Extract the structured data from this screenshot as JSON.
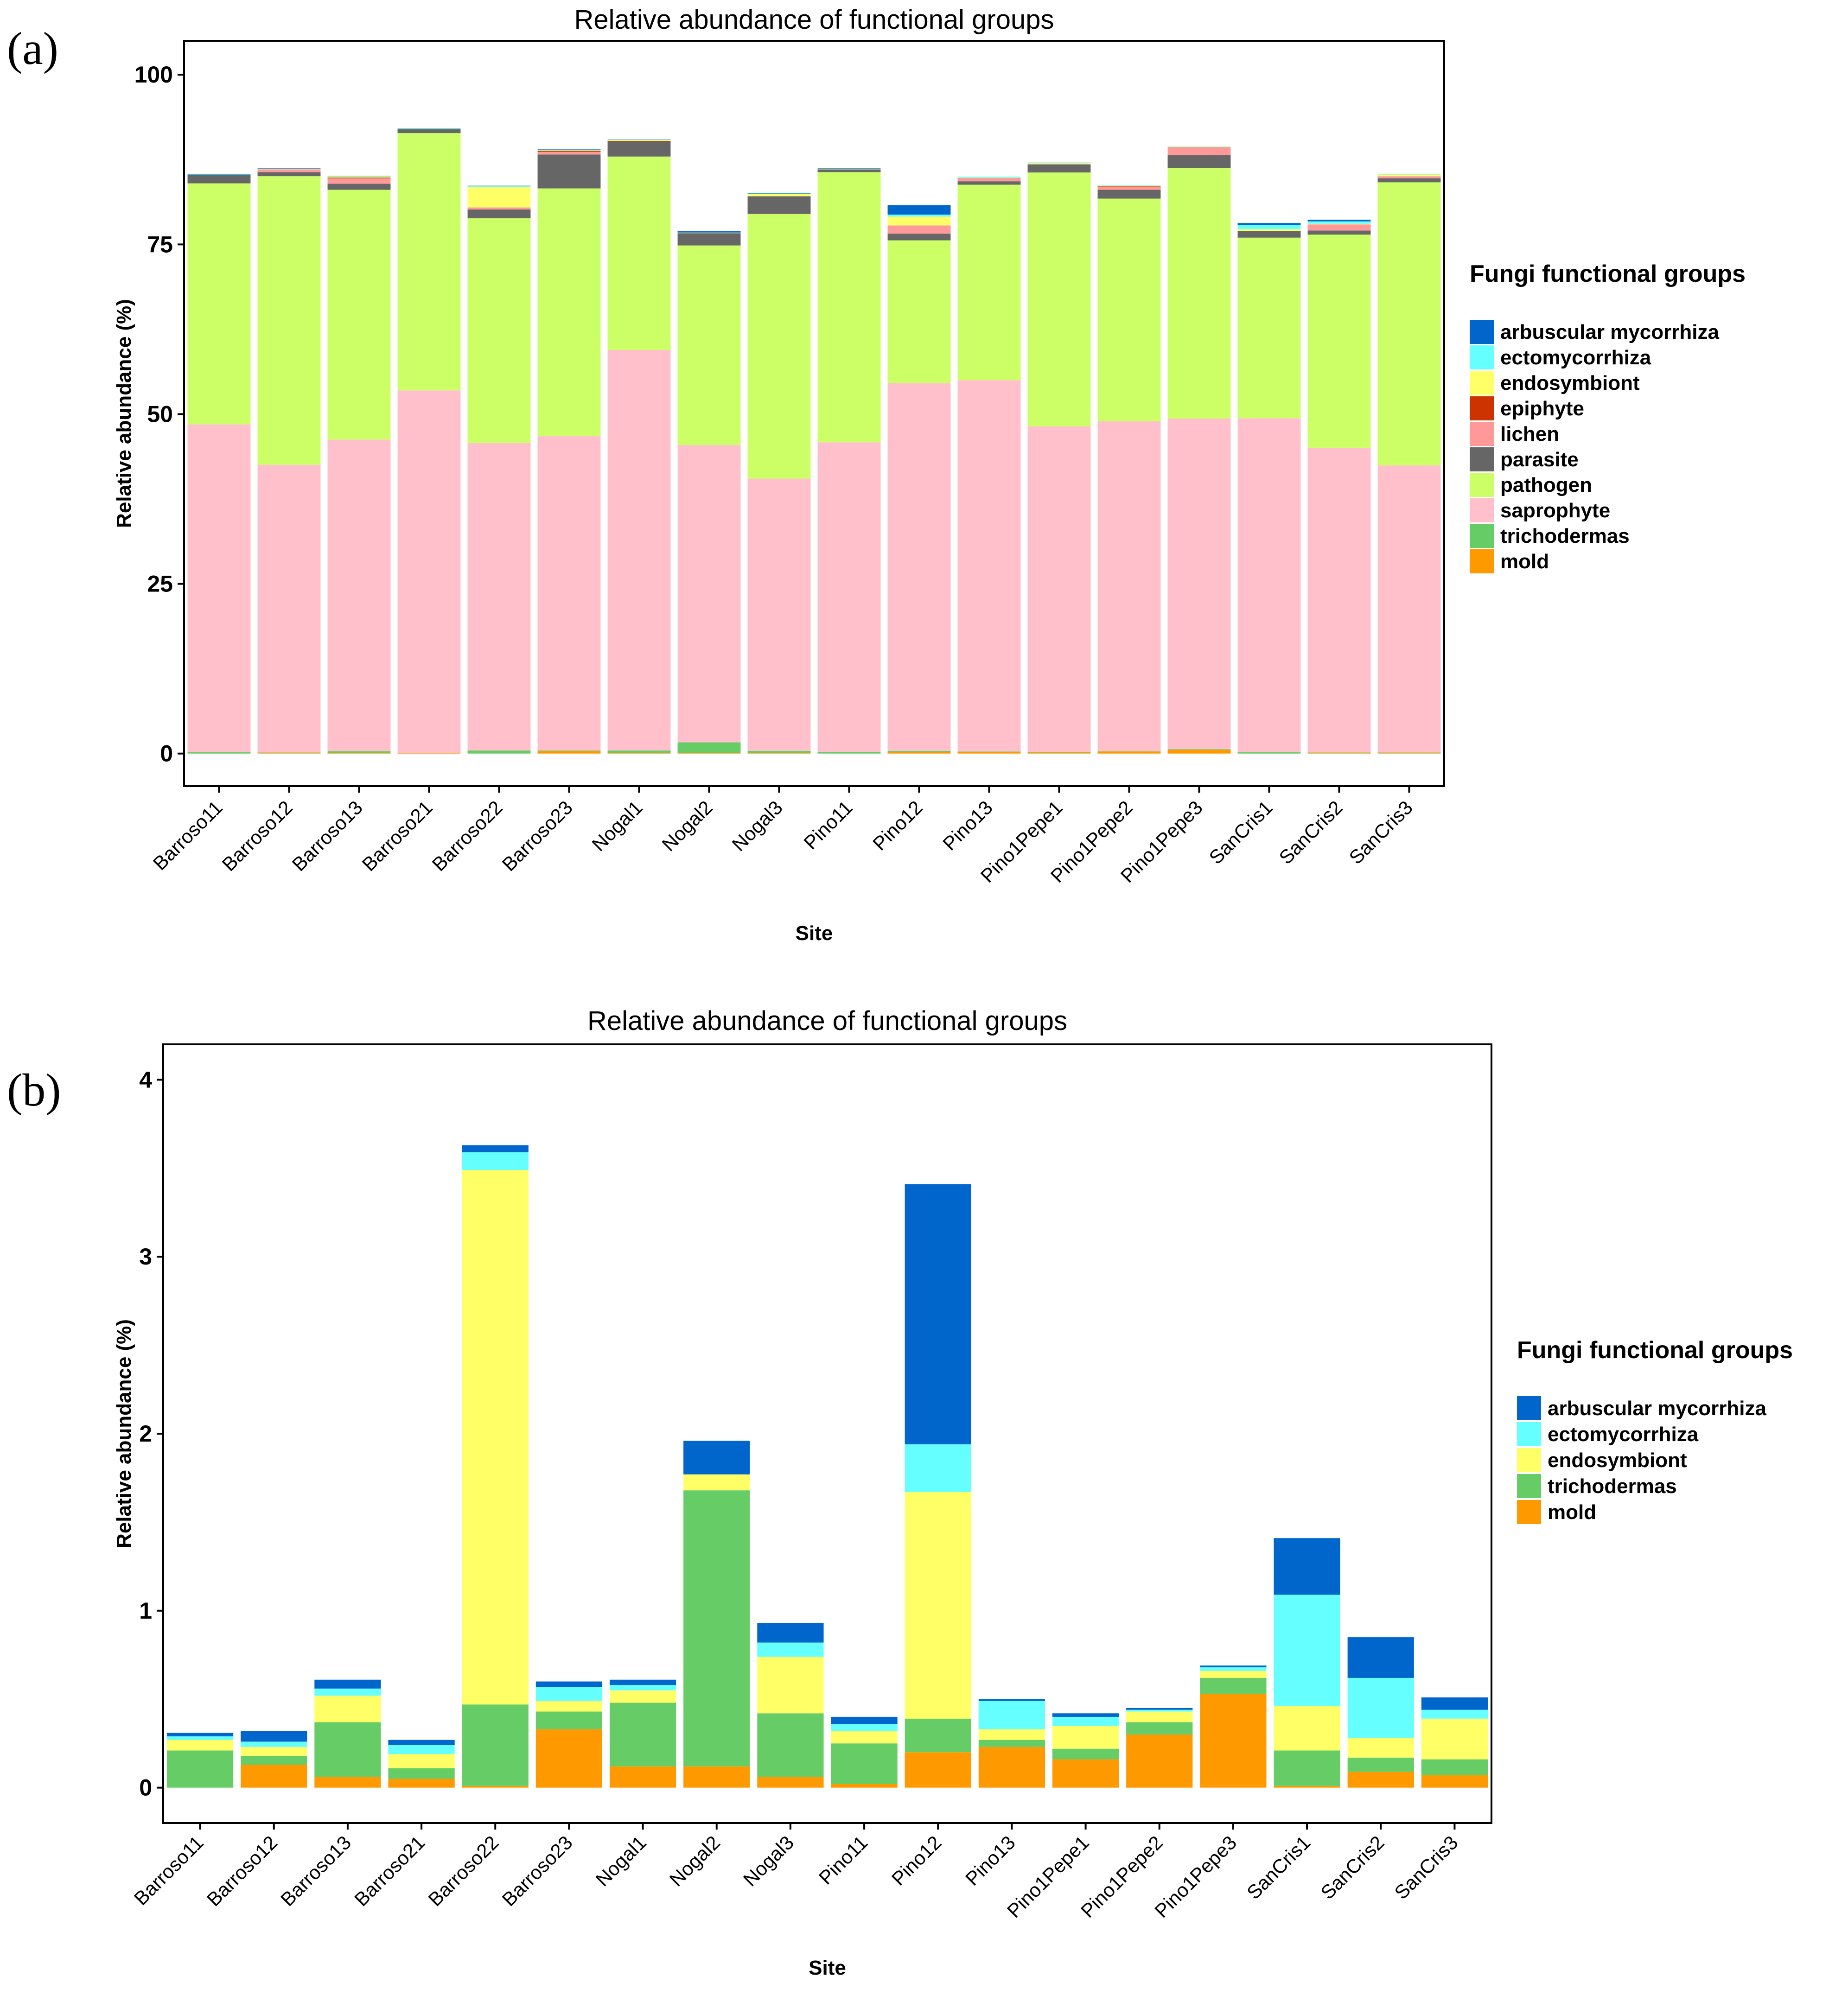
{
  "figure": {
    "panel_labels": [
      "(a)",
      "(b)"
    ]
  },
  "groups": [
    {
      "key": "arbuscular mycorrhiza",
      "label": "arbuscular mycorrhiza",
      "color": "#0066cc"
    },
    {
      "key": "ectomycorrhiza",
      "label": "ectomycorrhiza",
      "color": "#66ffff"
    },
    {
      "key": "endosymbiont",
      "label": "endosymbiont",
      "color": "#ffff66"
    },
    {
      "key": "epiphyte",
      "label": "epiphyte",
      "color": "#cc3300"
    },
    {
      "key": "lichen",
      "label": "lichen",
      "color": "#ff9999"
    },
    {
      "key": "parasite",
      "label": "parasite",
      "color": "#666666"
    },
    {
      "key": "pathogen",
      "label": "pathogen",
      "color": "#ccff66"
    },
    {
      "key": "saprophyte",
      "label": "saprophyte",
      "color": "#ffc0cb"
    },
    {
      "key": "trichodermas",
      "label": "trichodermas",
      "color": "#66cc66"
    },
    {
      "key": "mold",
      "label": "mold",
      "color": "#ff9900"
    }
  ],
  "chart_data": [
    {
      "type": "bar",
      "stacked": true,
      "title": "Relative abundance of functional groups",
      "xlabel": "Site",
      "ylabel": "Relative abundance (%)",
      "ylim": [
        -4.8,
        105
      ],
      "yticks": [
        0,
        25,
        50,
        75,
        100
      ],
      "legend_title": "Fungi functional groups",
      "legend_position": "right",
      "stack_order": [
        "mold",
        "trichodermas",
        "saprophyte",
        "pathogen",
        "parasite",
        "lichen",
        "epiphyte",
        "endosymbiont",
        "ectomycorrhiza",
        "arbuscular mycorrhiza"
      ],
      "categories": [
        "Barroso11",
        "Barroso12",
        "Barroso13",
        "Barroso21",
        "Barroso22",
        "Barroso23",
        "Nogal1",
        "Nogal2",
        "Nogal3",
        "Pino11",
        "Pino12",
        "Pino13",
        "Pino1Pepe1",
        "Pino1Pepe2",
        "Pino1Pepe3",
        "SanCris1",
        "SanCris2",
        "SanCris3"
      ],
      "series": [
        {
          "name": "mold",
          "values": [
            0.0,
            0.1,
            0.05,
            0.05,
            0.0,
            0.35,
            0.1,
            0.1,
            0.05,
            0.0,
            0.2,
            0.25,
            0.15,
            0.3,
            0.55,
            0.0,
            0.1,
            0.05
          ]
        },
        {
          "name": "trichodermas",
          "values": [
            0.2,
            0.05,
            0.3,
            0.05,
            0.45,
            0.1,
            0.35,
            1.55,
            0.35,
            0.25,
            0.2,
            0.05,
            0.05,
            0.05,
            0.1,
            0.2,
            0.05,
            0.1
          ]
        },
        {
          "name": "saprophyte",
          "values": [
            48.3,
            42.4,
            45.9,
            53.4,
            45.3,
            46.3,
            59.0,
            43.8,
            40.1,
            45.6,
            54.2,
            54.7,
            48.0,
            48.6,
            48.7,
            49.2,
            44.9,
            42.3
          ]
        },
        {
          "name": "pathogen",
          "values": [
            35.5,
            42.5,
            36.8,
            37.9,
            33.1,
            36.5,
            28.5,
            29.4,
            39.0,
            39.8,
            21.0,
            28.8,
            37.4,
            32.8,
            36.9,
            26.6,
            31.4,
            41.7
          ]
        },
        {
          "name": "parasite",
          "values": [
            1.2,
            0.6,
            0.9,
            0.6,
            1.3,
            5.0,
            2.2,
            1.8,
            2.6,
            0.4,
            1.0,
            0.5,
            1.2,
            1.3,
            1.9,
            1.0,
            0.6,
            0.6
          ]
        },
        {
          "name": "lichen",
          "values": [
            0.0,
            0.4,
            0.8,
            0.0,
            0.3,
            0.4,
            0.0,
            0.0,
            0.0,
            0.0,
            1.2,
            0.5,
            0.0,
            0.4,
            1.2,
            0.0,
            0.9,
            0.3
          ]
        },
        {
          "name": "epiphyte",
          "values": [
            0.0,
            0.0,
            0.1,
            0.0,
            0.0,
            0.15,
            0.1,
            0.0,
            0.0,
            0.0,
            0.0,
            0.0,
            0.0,
            0.1,
            0.0,
            0.0,
            0.0,
            0.0
          ]
        },
        {
          "name": "endosymbiont",
          "values": [
            0.05,
            0.05,
            0.15,
            0.05,
            3.05,
            0.05,
            0.1,
            0.1,
            0.3,
            0.05,
            1.3,
            0.05,
            0.15,
            0.1,
            0.05,
            0.25,
            0.1,
            0.25
          ]
        },
        {
          "name": "ectomycorrhiza",
          "values": [
            0.05,
            0.05,
            0.05,
            0.05,
            0.1,
            0.1,
            0.05,
            0.0,
            0.1,
            0.05,
            0.3,
            0.15,
            0.05,
            0.05,
            0.05,
            0.6,
            0.35,
            0.05
          ]
        },
        {
          "name": "arbuscular mycorrhiza",
          "values": [
            0.05,
            0.05,
            0.05,
            0.05,
            0.05,
            0.05,
            0.05,
            0.2,
            0.1,
            0.05,
            1.4,
            0.0,
            0.05,
            0.0,
            0.0,
            0.3,
            0.25,
            0.05
          ]
        }
      ]
    },
    {
      "type": "bar",
      "stacked": true,
      "title": "Relative abundance of functional groups",
      "xlabel": "Site",
      "ylabel": "Relative abundance (%)",
      "ylim": [
        -0.2,
        4.2
      ],
      "yticks": [
        0,
        1,
        2,
        3,
        4
      ],
      "legend_title": "Fungi functional groups",
      "legend_position": "right",
      "stack_order": [
        "mold",
        "trichodermas",
        "endosymbiont",
        "ectomycorrhiza",
        "arbuscular mycorrhiza"
      ],
      "categories": [
        "Barroso11",
        "Barroso12",
        "Barroso13",
        "Barroso21",
        "Barroso22",
        "Barroso23",
        "Nogal1",
        "Nogal2",
        "Nogal3",
        "Pino11",
        "Pino12",
        "Pino13",
        "Pino1Pepe1",
        "Pino1Pepe2",
        "Pino1Pepe3",
        "SanCris1",
        "SanCris2",
        "SanCris3"
      ],
      "series": [
        {
          "name": "mold",
          "values": [
            0.0,
            0.13,
            0.06,
            0.05,
            0.01,
            0.33,
            0.12,
            0.12,
            0.06,
            0.02,
            0.2,
            0.23,
            0.16,
            0.3,
            0.53,
            0.01,
            0.09,
            0.07
          ]
        },
        {
          "name": "trichodermas",
          "values": [
            0.21,
            0.05,
            0.31,
            0.06,
            0.46,
            0.1,
            0.36,
            1.56,
            0.36,
            0.23,
            0.19,
            0.04,
            0.06,
            0.07,
            0.09,
            0.2,
            0.08,
            0.09
          ]
        },
        {
          "name": "endosymbiont",
          "values": [
            0.06,
            0.05,
            0.15,
            0.08,
            3.02,
            0.06,
            0.07,
            0.09,
            0.32,
            0.07,
            1.28,
            0.06,
            0.13,
            0.06,
            0.04,
            0.25,
            0.11,
            0.23
          ]
        },
        {
          "name": "ectomycorrhiza",
          "values": [
            0.02,
            0.03,
            0.04,
            0.05,
            0.1,
            0.08,
            0.03,
            0.0,
            0.08,
            0.04,
            0.27,
            0.16,
            0.05,
            0.01,
            0.02,
            0.63,
            0.34,
            0.05
          ]
        },
        {
          "name": "arbuscular mycorrhiza",
          "values": [
            0.02,
            0.06,
            0.05,
            0.03,
            0.04,
            0.03,
            0.03,
            0.19,
            0.11,
            0.04,
            1.47,
            0.01,
            0.02,
            0.01,
            0.01,
            0.32,
            0.23,
            0.07
          ]
        }
      ]
    }
  ]
}
